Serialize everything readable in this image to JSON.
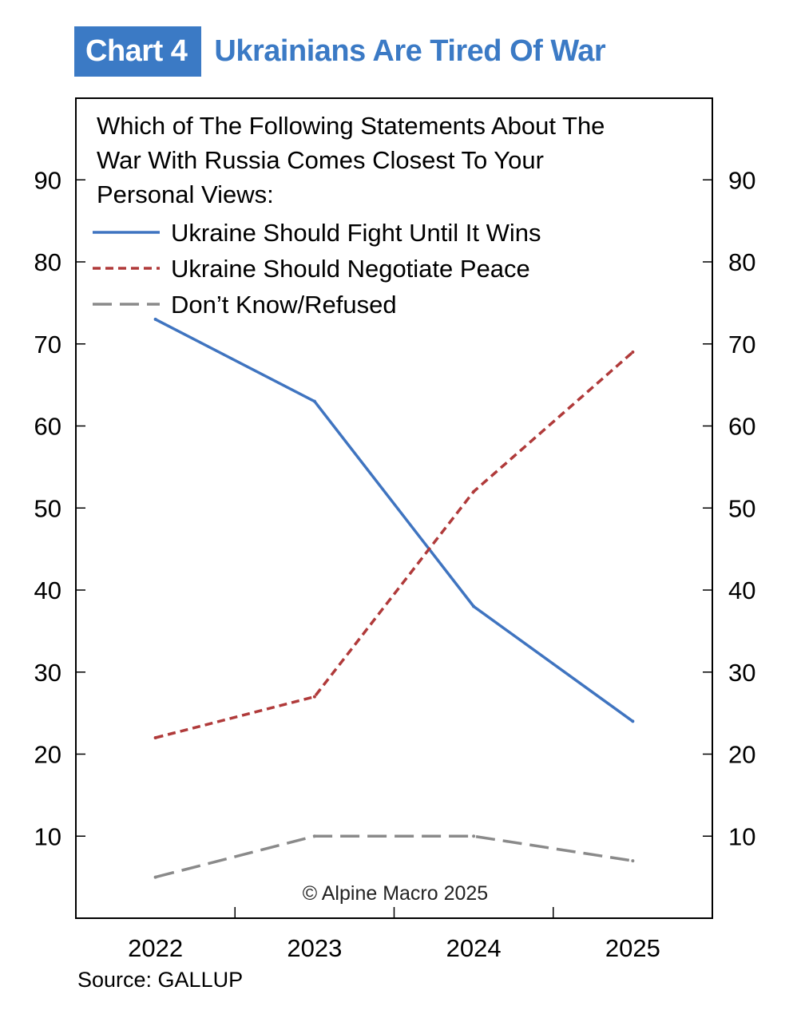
{
  "header": {
    "badge": "Chart 4",
    "title": "Ukrainians Are Tired Of War"
  },
  "chart_data": {
    "type": "line",
    "title": "Ukrainians Are Tired Of War",
    "legend_title": [
      "Which of The Following Statements About The",
      "War With Russia Comes Closest To Your",
      "Personal Views:"
    ],
    "categories": [
      "2022",
      "2023",
      "2024",
      "2025"
    ],
    "series": [
      {
        "name": "Ukraine Should Fight Until It Wins",
        "values": [
          73,
          63,
          38,
          24
        ],
        "color": "#3f74c0",
        "style": "solid"
      },
      {
        "name": "Ukraine Should Negotiate Peace",
        "values": [
          22,
          27,
          52,
          69
        ],
        "color": "#b03a3a",
        "style": "dashed"
      },
      {
        "name": "Don’t Know/Refused",
        "values": [
          5,
          10,
          10,
          7
        ],
        "color": "#8a8a8a",
        "style": "longdash"
      }
    ],
    "ylim": [
      0,
      100
    ],
    "yticks": [
      10,
      20,
      30,
      40,
      50,
      60,
      70,
      80,
      90
    ],
    "xlabel": "",
    "ylabel": "",
    "legend_position": "top-left",
    "watermark": "© Alpine Macro 2025"
  },
  "footer": {
    "source": "Source: GALLUP"
  }
}
